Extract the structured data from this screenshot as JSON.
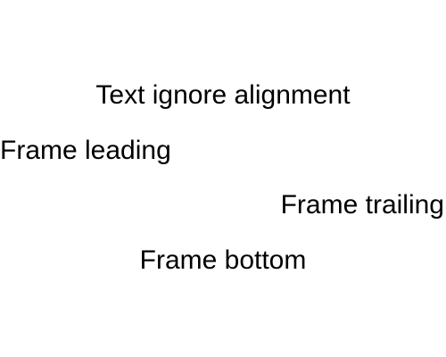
{
  "texts": {
    "ignore_alignment": "Text ignore alignment",
    "leading": "Frame leading",
    "trailing": "Frame trailing",
    "bottom": "Frame bottom"
  },
  "colors": {
    "background": "#ffffff",
    "text": "#000000"
  }
}
